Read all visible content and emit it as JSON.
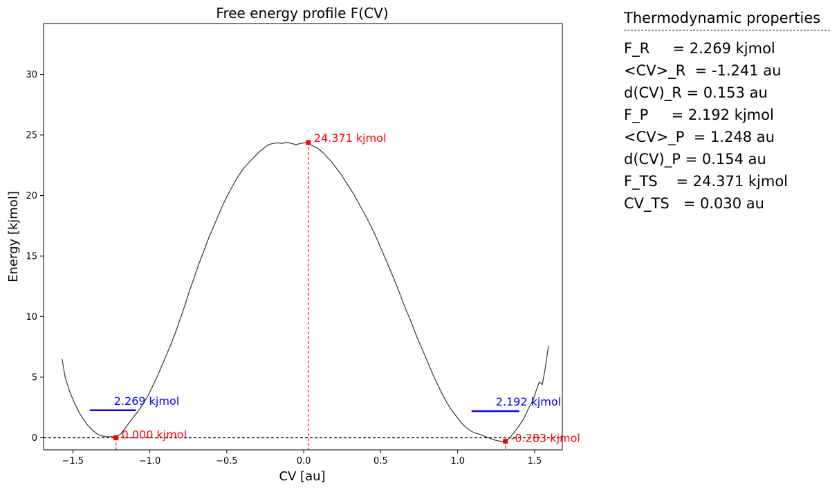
{
  "chart_data": {
    "type": "line",
    "title": "Free energy profile F(CV)",
    "xlabel": "CV [au]",
    "ylabel": "Energy [kjmol]",
    "xlim": [
      -1.69,
      1.68
    ],
    "ylim": [
      -1.0,
      34.2
    ],
    "x_ticks": [
      -1.5,
      -1.0,
      -0.5,
      0.0,
      0.5,
      1.0,
      1.5
    ],
    "x_tick_labels": [
      "−1.5",
      "−1.0",
      "−0.5",
      "0.0",
      "0.5",
      "1.0",
      "1.5"
    ],
    "y_ticks": [
      0,
      5,
      10,
      15,
      20,
      25,
      30
    ],
    "y_tick_labels": [
      "0",
      "5",
      "10",
      "15",
      "20",
      "25",
      "30"
    ],
    "grid": false,
    "series": [
      {
        "name": "F(CV)",
        "color": "#333333",
        "x": [
          -1.57,
          -1.55,
          -1.52,
          -1.49,
          -1.46,
          -1.43,
          -1.4,
          -1.37,
          -1.34,
          -1.31,
          -1.28,
          -1.25,
          -1.22,
          -1.19,
          -1.16,
          -1.13,
          -1.1,
          -1.07,
          -1.04,
          -1.01,
          -0.98,
          -0.95,
          -0.92,
          -0.89,
          -0.86,
          -0.83,
          -0.8,
          -0.77,
          -0.74,
          -0.71,
          -0.68,
          -0.65,
          -0.62,
          -0.59,
          -0.56,
          -0.53,
          -0.5,
          -0.47,
          -0.44,
          -0.41,
          -0.38,
          -0.35,
          -0.32,
          -0.29,
          -0.26,
          -0.23,
          -0.2,
          -0.17,
          -0.14,
          -0.11,
          -0.08,
          -0.05,
          -0.02,
          0.01,
          0.03,
          0.06,
          0.09,
          0.12,
          0.15,
          0.18,
          0.21,
          0.24,
          0.27,
          0.3,
          0.33,
          0.36,
          0.39,
          0.42,
          0.45,
          0.48,
          0.51,
          0.54,
          0.57,
          0.6,
          0.63,
          0.66,
          0.69,
          0.72,
          0.75,
          0.78,
          0.81,
          0.84,
          0.87,
          0.9,
          0.93,
          0.96,
          0.99,
          1.02,
          1.05,
          1.08,
          1.11,
          1.14,
          1.17,
          1.2,
          1.23,
          1.26,
          1.29,
          1.31,
          1.34,
          1.37,
          1.4,
          1.43,
          1.46,
          1.49,
          1.51,
          1.53,
          1.55,
          1.57,
          1.59
        ],
        "values": [
          6.5,
          5.0,
          3.8,
          2.9,
          2.1,
          1.5,
          1.0,
          0.6,
          0.3,
          0.15,
          0.1,
          0.1,
          0.05,
          0.3,
          0.8,
          1.3,
          1.8,
          2.3,
          2.9,
          3.5,
          4.3,
          5.1,
          6.0,
          6.9,
          7.8,
          8.8,
          9.9,
          11.0,
          12.2,
          13.3,
          14.4,
          15.4,
          16.4,
          17.3,
          18.2,
          19.1,
          19.9,
          20.6,
          21.3,
          21.9,
          22.4,
          22.8,
          23.2,
          23.6,
          23.9,
          24.2,
          24.3,
          24.35,
          24.3,
          24.4,
          24.3,
          24.2,
          24.3,
          24.37,
          24.3,
          24.1,
          23.9,
          23.6,
          23.2,
          22.8,
          22.3,
          21.8,
          21.2,
          20.6,
          20.0,
          19.3,
          18.6,
          17.9,
          17.1,
          16.3,
          15.4,
          14.5,
          13.6,
          12.7,
          11.7,
          10.7,
          9.8,
          8.8,
          7.9,
          7.0,
          6.1,
          5.2,
          4.4,
          3.6,
          2.9,
          2.3,
          1.8,
          1.3,
          0.9,
          0.6,
          0.4,
          0.3,
          0.15,
          0.0,
          -0.15,
          -0.25,
          -0.3,
          -0.28,
          0.0,
          0.5,
          1.0,
          1.6,
          2.4,
          3.1,
          3.9,
          4.6,
          4.4,
          5.8,
          7.6
        ]
      }
    ],
    "reference_line": {
      "y": 0,
      "style": "dashed",
      "color": "#000000"
    },
    "minima": [
      {
        "name": "R",
        "x": -1.22,
        "y": 0.0,
        "label": "0.000 kjmol",
        "color": "#ff0000",
        "level": {
          "y": 2.269,
          "x_from": -1.39,
          "x_to": -1.09,
          "label": "2.269 kjmol",
          "color": "#0000ff"
        }
      },
      {
        "name": "P",
        "x": 1.31,
        "y": -0.283,
        "label": "-0.283 kjmol",
        "color": "#ff0000",
        "level": {
          "y": 2.192,
          "x_from": 1.09,
          "x_to": 1.4,
          "label": "2.192 kjmol",
          "color": "#0000ff"
        }
      }
    ],
    "transition_state": {
      "x": 0.03,
      "y": 24.371,
      "label": "24.371 kjmol",
      "color": "#ff0000"
    }
  },
  "properties": {
    "title": "Thermodynamic properties",
    "lines": [
      "F_R     = 2.269 kjmol",
      "<CV>_R  = -1.241 au",
      "d(CV)_R = 0.153 au",
      "F_P     = 2.192 kjmol",
      "<CV>_P  = 1.248 au",
      "d(CV)_P = 0.154 au",
      "F_TS    = 24.371 kjmol",
      "CV_TS   = 0.030 au"
    ]
  }
}
